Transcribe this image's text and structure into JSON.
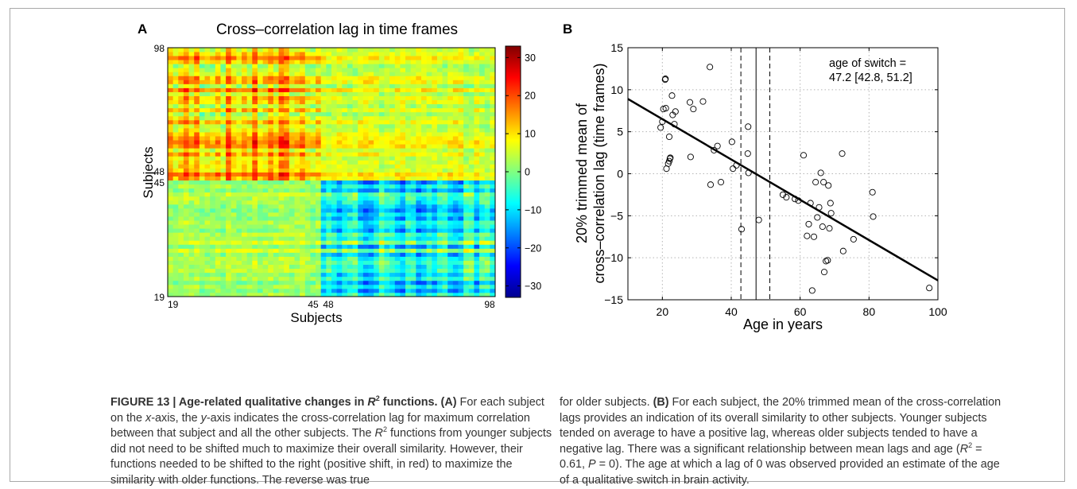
{
  "panel_a": {
    "letter": "A",
    "title": "Cross–correlation lag in time frames",
    "ylabel": "Subjects",
    "xlabel": "Subjects",
    "yticks": [
      "98",
      "48",
      "45",
      "19"
    ],
    "xticks": [
      "19",
      "45",
      "48",
      "98"
    ],
    "colorbar_ticks": [
      "30",
      "20",
      "10",
      "0",
      "−10",
      "−20",
      "−30"
    ],
    "colorbar_range": [
      -33,
      33
    ],
    "colormap": "jet"
  },
  "panel_b": {
    "letter": "B",
    "ylabel_line1": "20% trimmed mean of",
    "ylabel_line2": "cross–correlation lag (time frames)",
    "xlabel": "Age in years",
    "annotation_line1": "age of switch =",
    "annotation_line2": "47.2 [42.8, 51.2]",
    "xticks": [
      "20",
      "40",
      "60",
      "80",
      "100"
    ],
    "yticks": [
      "15",
      "10",
      "5",
      "0",
      "−5",
      "−10",
      "−15"
    ]
  },
  "chart_data": [
    {
      "type": "heatmap",
      "title": "Cross–correlation lag in time frames",
      "xlabel": "Subjects",
      "ylabel": "Subjects",
      "x_tick_labels": [
        "19",
        "45",
        "48",
        "98"
      ],
      "y_tick_labels": [
        "19",
        "45",
        "48",
        "98"
      ],
      "value_range": [
        -33,
        33
      ],
      "colorbar_ticks": [
        30,
        20,
        10,
        0,
        -10,
        -20,
        -30
      ],
      "n_subjects": 62
    },
    {
      "type": "scatter",
      "xlabel": "Age in years",
      "ylabel": "20% trimmed mean of cross–correlation lag (time frames)",
      "xlim": [
        10,
        100
      ],
      "ylim": [
        -15,
        15
      ],
      "grid": true,
      "fit_line": {
        "x": [
          10,
          100
        ],
        "y": [
          8.9,
          -12.7
        ]
      },
      "age_of_switch": 47.2,
      "ci": [
        42.8,
        51.2
      ],
      "points": [
        [
          19.5,
          5.5
        ],
        [
          20,
          6.2
        ],
        [
          20.3,
          7.7
        ],
        [
          20.8,
          11.2
        ],
        [
          20.9,
          11.3
        ],
        [
          21,
          7.8
        ],
        [
          21.2,
          0.6
        ],
        [
          21.7,
          1.2
        ],
        [
          22,
          4.4
        ],
        [
          22,
          1.5
        ],
        [
          22.2,
          1.8
        ],
        [
          22.3,
          1.9
        ],
        [
          22.8,
          9.3
        ],
        [
          23,
          7
        ],
        [
          23.5,
          5.9
        ],
        [
          23.8,
          7.4
        ],
        [
          28,
          8.5
        ],
        [
          28.2,
          2
        ],
        [
          29,
          7.7
        ],
        [
          31.8,
          8.6
        ],
        [
          33.8,
          12.7
        ],
        [
          34,
          -1.3
        ],
        [
          35,
          2.8
        ],
        [
          36,
          3.3
        ],
        [
          37,
          -1
        ],
        [
          40.2,
          3.8
        ],
        [
          40.5,
          0.6
        ],
        [
          41.5,
          1
        ],
        [
          43,
          -6.6
        ],
        [
          44.8,
          2.4
        ],
        [
          44.9,
          5.6
        ],
        [
          45,
          0.1
        ],
        [
          48,
          -5.5
        ],
        [
          55,
          -2.5
        ],
        [
          56,
          -2.8
        ],
        [
          58.5,
          -3
        ],
        [
          59.5,
          -3.2
        ],
        [
          61,
          2.2
        ],
        [
          62,
          -7.4
        ],
        [
          62.5,
          -6
        ],
        [
          63,
          -3.5
        ],
        [
          63.5,
          -13.9
        ],
        [
          64,
          -7.5
        ],
        [
          64.5,
          -1
        ],
        [
          65,
          -5.2
        ],
        [
          65.5,
          -4
        ],
        [
          66,
          0.1
        ],
        [
          66.5,
          -6.3
        ],
        [
          66.8,
          -1
        ],
        [
          67,
          -11.7
        ],
        [
          67.5,
          -10.4
        ],
        [
          68,
          -10.3
        ],
        [
          68.2,
          -1.4
        ],
        [
          68.5,
          -6.5
        ],
        [
          68.8,
          -3.5
        ],
        [
          69,
          -4.7
        ],
        [
          72.2,
          2.4
        ],
        [
          72.5,
          -9.2
        ],
        [
          75.5,
          -7.8
        ],
        [
          81,
          -2.2
        ],
        [
          81.2,
          -5.1
        ],
        [
          97.5,
          -13.6
        ]
      ]
    }
  ],
  "caption_left": {
    "fig_label": "FIGURE 13 | Age-related qualitative changes in ",
    "fig_r": "R",
    "fig_sup": "2",
    "fig_tail": " functions. (A)",
    "t1": " For each subject on the ",
    "x_axis": "x",
    "t2": "-axis, the ",
    "y_axis": "y",
    "t3": "-axis indicates the cross-correlation lag for maximum correlation between that subject and all the other subjects. The ",
    "r": "R",
    "sup": "2",
    "t4": " functions from younger subjects did not need to be shifted much to maximize their overall similarity. However, their functions needed to be shifted to the right (positive shift, in red) to maximize the similarity with older functions. The reverse was true"
  },
  "caption_right": {
    "t1": "for older subjects. ",
    "b_label": "(B)",
    "t2": " For each subject, the 20% trimmed mean of the cross-correlation lags provides an indication of its overall similarity to other subjects. Younger subjects tended on average to have a positive lag, whereas older subjects tended to have a negative lag. There was a significant relationship between mean lags and age (",
    "r": "R",
    "sup": "2",
    "t3": " = 0.61, ",
    "p": "P",
    "t4": " = 0). The age at which a lag of 0 was observed provided an estimate of the age of a qualitative switch in brain activity."
  }
}
